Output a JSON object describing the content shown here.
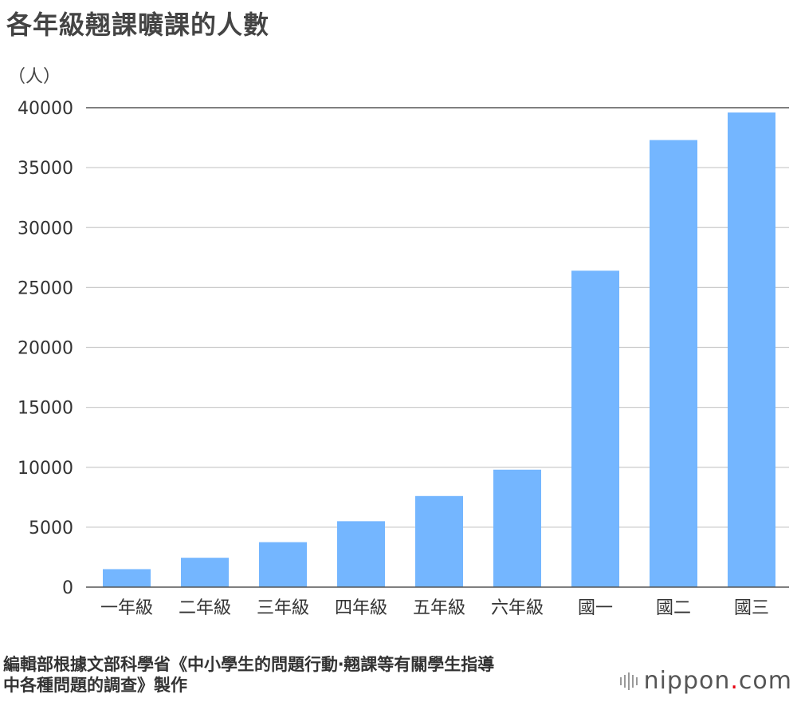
{
  "title": "各年級翹課曠課的人數",
  "unit_label": "（人）",
  "source_lines": [
    "編輯部根據文部科學省《中小學生的問題行動‧翹課等有關學生指導",
    "中各種問題的調查》製作"
  ],
  "brand": {
    "name_main": "nippon",
    "name_dot": ".",
    "name_tail": "com",
    "icon": "sound-bars-icon",
    "dot_color": "#e60012"
  },
  "colors": {
    "bar": "#74b6ff",
    "grid": "#cccccc",
    "axis": "#555555",
    "text": "#333333"
  },
  "chart_data": {
    "type": "bar",
    "categories": [
      "一年級",
      "二年級",
      "三年級",
      "四年級",
      "五年級",
      "六年級",
      "國一",
      "國二",
      "國三"
    ],
    "values": [
      1500,
      2450,
      3750,
      5500,
      7600,
      9800,
      26400,
      37300,
      39600
    ],
    "ylim": [
      0,
      40000
    ],
    "yticks": [
      0,
      5000,
      10000,
      15000,
      20000,
      25000,
      30000,
      35000,
      40000
    ],
    "ylabel": "（人）",
    "xlabel": "",
    "grid": true,
    "legend": "none"
  }
}
